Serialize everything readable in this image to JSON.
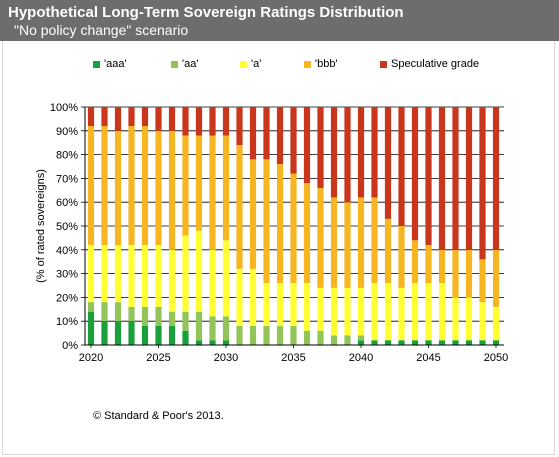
{
  "header": {
    "title": "Hypothetical Long-Term Sovereign Ratings Distribution",
    "subtitle": "\"No policy change\" scenario"
  },
  "footer": {
    "copyright": "© Standard & Poor's 2013."
  },
  "colors": {
    "aaa": "#1a9f3c",
    "aa": "#92c45a",
    "a": "#ffff33",
    "bbb": "#f5b621",
    "spec": "#c9361c",
    "header_bg": "#6d6d6d",
    "grid": "#000000"
  },
  "chart_data": {
    "type": "bar",
    "stacked": true,
    "title": "Hypothetical Long-Term Sovereign Ratings Distribution",
    "subtitle": "\"No policy change\" scenario",
    "xlabel": "",
    "ylabel": "(% of rated sovereigns)",
    "ylim": [
      0,
      100
    ],
    "y_ticks": [
      "0%",
      "10%",
      "20%",
      "30%",
      "40%",
      "50%",
      "60%",
      "70%",
      "80%",
      "90%",
      "100%"
    ],
    "x_tick_labels": [
      "2020",
      "2025",
      "2030",
      "2035",
      "2040",
      "2045",
      "2050"
    ],
    "legend_position": "top",
    "grid": "horizontal",
    "categories": [
      2020,
      2021,
      2022,
      2023,
      2024,
      2025,
      2026,
      2027,
      2028,
      2029,
      2030,
      2031,
      2032,
      2033,
      2034,
      2035,
      2036,
      2037,
      2038,
      2039,
      2040,
      2041,
      2042,
      2043,
      2044,
      2045,
      2046,
      2047,
      2048,
      2049,
      2050
    ],
    "series": [
      {
        "name": "'aaa'",
        "color_key": "aaa",
        "values": [
          14,
          10,
          10,
          10,
          8,
          8,
          8,
          6,
          2,
          2,
          2,
          0,
          0,
          0,
          0,
          0,
          0,
          0,
          0,
          0,
          2,
          2,
          2,
          2,
          2,
          2,
          2,
          2,
          2,
          2,
          2
        ]
      },
      {
        "name": "'aa'",
        "color_key": "aa",
        "values": [
          4,
          8,
          8,
          6,
          8,
          8,
          6,
          8,
          12,
          10,
          10,
          8,
          8,
          8,
          8,
          8,
          6,
          6,
          4,
          4,
          2,
          0,
          0,
          0,
          0,
          0,
          0,
          0,
          0,
          0,
          0
        ]
      },
      {
        "name": "'a'",
        "color_key": "a",
        "values": [
          24,
          24,
          24,
          26,
          26,
          26,
          26,
          32,
          34,
          28,
          32,
          24,
          24,
          18,
          18,
          18,
          20,
          18,
          20,
          20,
          20,
          24,
          24,
          22,
          24,
          24,
          24,
          18,
          18,
          16,
          14
        ]
      },
      {
        "name": "'bbb'",
        "color_key": "bbb",
        "values": [
          50,
          50,
          48,
          50,
          50,
          48,
          50,
          42,
          40,
          48,
          44,
          52,
          46,
          52,
          50,
          46,
          42,
          42,
          38,
          36,
          38,
          36,
          27,
          26,
          18,
          16,
          14,
          20,
          20,
          18,
          24
        ]
      },
      {
        "name": "Speculative grade",
        "color_key": "spec",
        "values": [
          8,
          8,
          10,
          8,
          8,
          10,
          10,
          12,
          12,
          12,
          12,
          16,
          22,
          22,
          24,
          28,
          32,
          34,
          38,
          40,
          38,
          38,
          47,
          50,
          56,
          58,
          60,
          60,
          60,
          64,
          60
        ]
      }
    ]
  }
}
